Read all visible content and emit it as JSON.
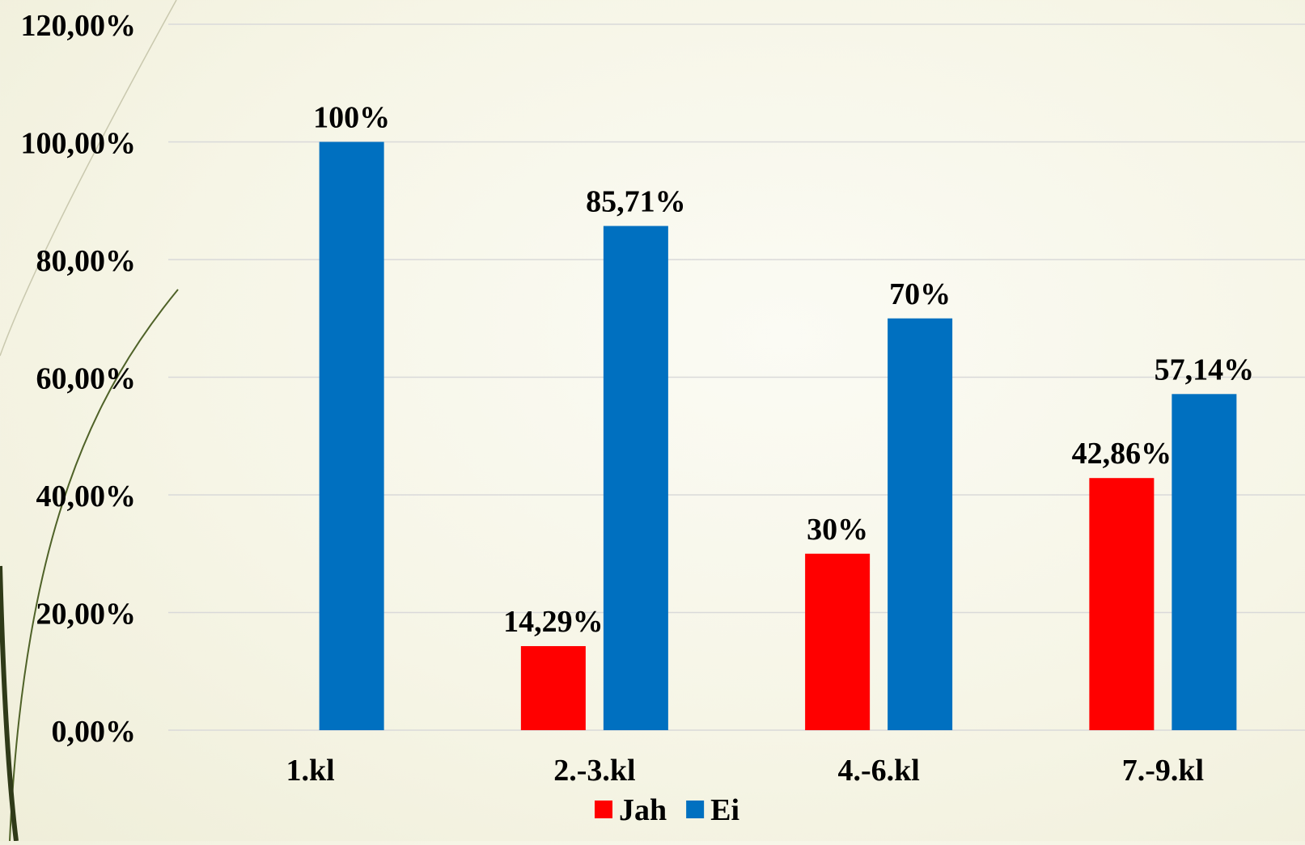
{
  "chart_data": {
    "type": "bar",
    "categories": [
      "1.kl",
      "2.-3.kl",
      "4.-6.kl",
      "7.-9.kl"
    ],
    "series": [
      {
        "name": "Jah",
        "color": "#ff0000",
        "values": [
          null,
          14.29,
          30,
          42.86
        ],
        "labels": [
          "",
          "14,29%",
          "30%",
          "42,86%"
        ]
      },
      {
        "name": "Ei",
        "color": "#0070c0",
        "values": [
          100,
          85.71,
          70,
          57.14
        ],
        "labels": [
          "100%",
          "85,71%",
          "70%",
          "57,14%"
        ]
      }
    ],
    "ylim": [
      0,
      120
    ],
    "yticks": [
      0,
      20,
      40,
      60,
      80,
      100,
      120
    ],
    "ytick_labels": [
      "0,00%",
      "20,00%",
      "40,00%",
      "60,00%",
      "80,00%",
      "100,00%",
      "120,00%"
    ],
    "grid": true,
    "legend_position": "bottom-center",
    "title": "",
    "xlabel": "",
    "ylabel": ""
  },
  "colors": {
    "gridline": "#d9d9d9",
    "decor_line": "#4f6228"
  }
}
